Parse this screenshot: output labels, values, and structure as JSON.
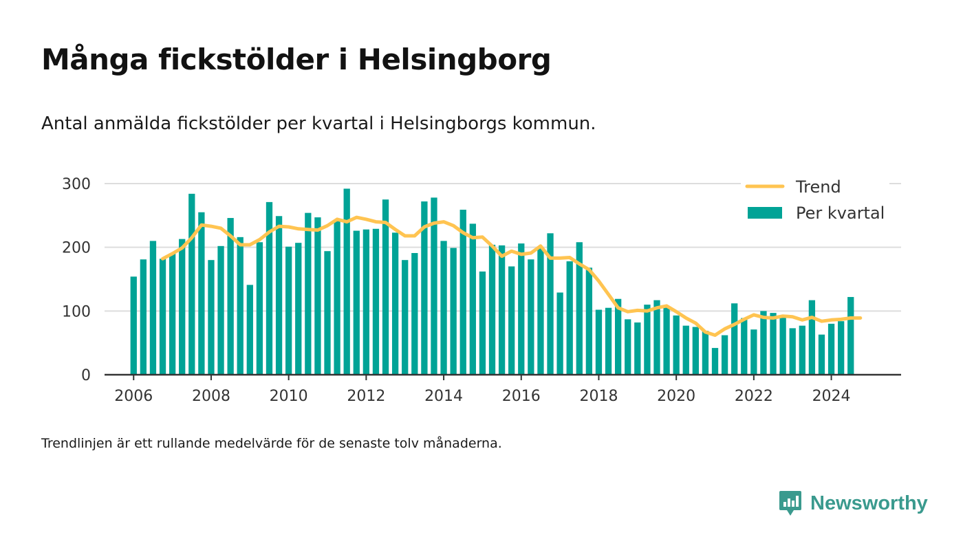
{
  "title": "Många fickstölder i Helsingborg",
  "subtitle": "Antal anmälda fickstölder per kvartal i Helsingborgs kommun.",
  "footnote": "Trendlinjen är ett rullande medelvärde för de senaste tolv månaderna.",
  "brand": {
    "name": "Newsworthy",
    "icon": "newsworthy-logo-icon"
  },
  "colors": {
    "bars": "#00A396",
    "trend": "#FFC451",
    "grid": "#dddddd",
    "axis": "#333333"
  },
  "chart_data": {
    "type": "bar",
    "title": "",
    "xlabel": "",
    "ylabel": "",
    "ylim": [
      0,
      300
    ],
    "xlim": [
      2005.25,
      2025.8
    ],
    "yticks": [
      0,
      100,
      200,
      300
    ],
    "xticks": [
      2006,
      2008,
      2010,
      2012,
      2014,
      2016,
      2018,
      2020,
      2022,
      2024
    ],
    "grid": true,
    "legend_position": "top-right",
    "legend": [
      "Trend",
      "Per kvartal"
    ],
    "first_quarter_x": 2006,
    "series": [
      {
        "name": "Per kvartal",
        "type": "bar",
        "values": [
          154,
          181,
          210,
          182,
          190,
          213,
          284,
          255,
          180,
          202,
          246,
          216,
          141,
          208,
          271,
          249,
          201,
          207,
          254,
          247,
          194,
          242,
          292,
          226,
          228,
          229,
          275,
          223,
          180,
          191,
          272,
          278,
          210,
          199,
          259,
          237,
          162,
          204,
          203,
          170,
          206,
          181,
          200,
          222,
          129,
          178,
          208,
          168,
          102,
          105,
          119,
          87,
          82,
          110,
          117,
          107,
          93,
          77,
          75,
          69,
          42,
          62,
          112,
          89,
          71,
          100,
          97,
          90,
          73,
          77,
          117,
          63,
          80,
          84,
          122
        ]
      },
      {
        "name": "Trend",
        "type": "line",
        "values": [
          182,
          190,
          199,
          215,
          235,
          233,
          230,
          218,
          204,
          204,
          212,
          224,
          233,
          232,
          229,
          228,
          227,
          234,
          244,
          240,
          247,
          244,
          240,
          239,
          228,
          218,
          218,
          232,
          238,
          240,
          234,
          223,
          215,
          216,
          202,
          186,
          194,
          189,
          191,
          202,
          183,
          183,
          184,
          174,
          165,
          147,
          126,
          105,
          99,
          101,
          100,
          105,
          108,
          99,
          89,
          81,
          67,
          62,
          72,
          79,
          87,
          94,
          90,
          89,
          92,
          91,
          86,
          90,
          84,
          86,
          87,
          89,
          89
        ]
      }
    ]
  }
}
